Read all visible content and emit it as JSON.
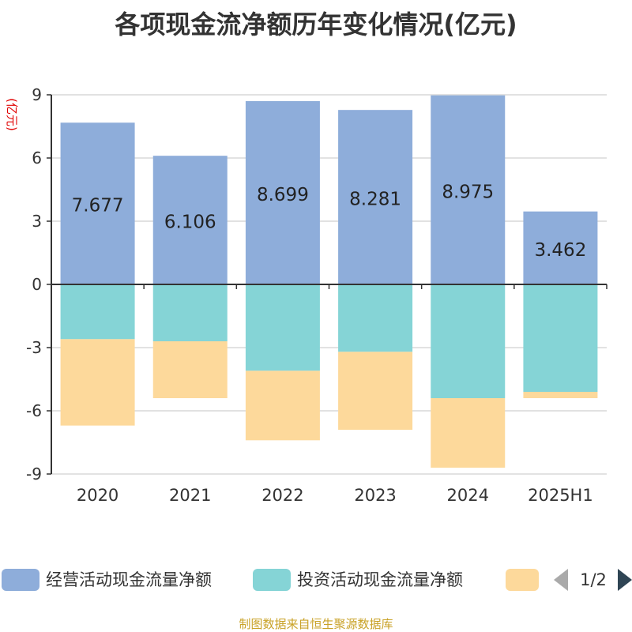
{
  "title": "各项现金流净额历年变化情况(亿元)",
  "source": "制图数据来自恒生聚源数据库",
  "legend": {
    "page": "1/2"
  },
  "colors": {
    "operating": "#8eadda",
    "investing": "#85d4d6",
    "financing": "#fdd99b",
    "axis": "#333333",
    "grid": "#d9d9d9",
    "text": "#333333",
    "unit": "#e00000",
    "pager_disabled": "#aaaaaa",
    "pager_active": "#2f4554"
  },
  "chart_data": {
    "type": "bar",
    "stacked": true,
    "categories": [
      "2020",
      "2021",
      "2022",
      "2023",
      "2024",
      "2025H1"
    ],
    "ylabel": "(亿元)",
    "ylim": [
      -9,
      9
    ],
    "yticks": [
      "9",
      "6",
      "3",
      "0",
      "-3",
      "-6",
      "-9"
    ],
    "grid": true,
    "legend_position": "bottom",
    "series": [
      {
        "name": "经营活动现金流量净额",
        "values": [
          7.677,
          6.106,
          8.699,
          8.281,
          8.975,
          3.462
        ],
        "labels": [
          "7.677",
          "6.106",
          "8.699",
          "8.281",
          "8.975",
          "3.462"
        ]
      },
      {
        "name": "投资活动现金流量净额",
        "values": [
          -2.6,
          -2.7,
          -4.1,
          -3.2,
          -5.4,
          -5.1
        ]
      },
      {
        "name": "",
        "values": [
          -4.1,
          -2.7,
          -3.3,
          -3.7,
          -3.3,
          -0.3
        ]
      }
    ]
  }
}
